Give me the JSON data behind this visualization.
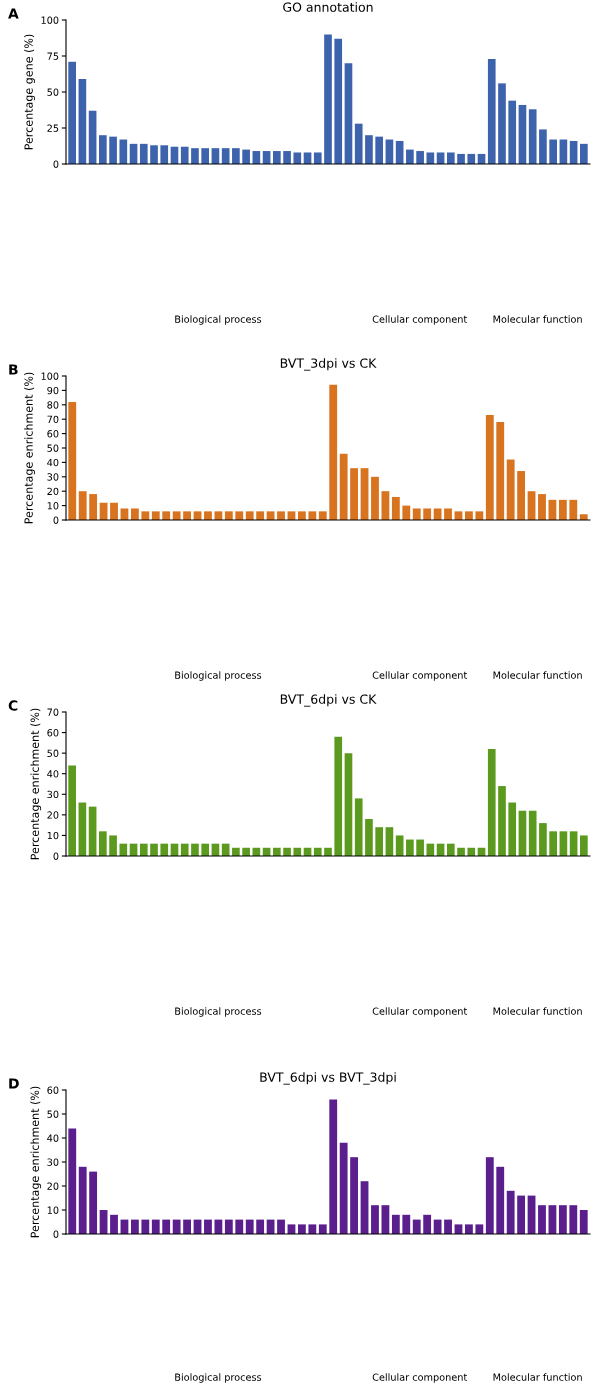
{
  "chart_data": [
    {
      "type": "bar",
      "title": "GO annotation",
      "ylabel": "Percentage gene (%)",
      "annotations": [
        "A",
        "Biological process",
        "Cellular component",
        "Molecular function"
      ],
      "color": "#3d63ad",
      "ylim": [
        0,
        100
      ],
      "yticks": [
        0,
        25,
        50,
        75,
        100
      ],
      "grid": false,
      "categories": [
        null,
        null,
        null,
        null,
        null,
        null,
        null,
        null,
        null,
        null,
        null,
        null,
        null,
        null,
        null,
        null,
        null,
        null,
        null,
        null,
        null,
        null,
        null,
        null,
        null,
        null,
        null,
        null,
        null,
        null,
        null,
        null,
        null,
        null,
        null,
        null,
        null,
        null,
        null,
        null,
        null,
        null,
        null,
        null,
        null,
        null,
        null,
        null,
        null,
        null,
        null
      ],
      "values": [
        71,
        59,
        37,
        20,
        19,
        17,
        14,
        14,
        13,
        13,
        12,
        12,
        11,
        11,
        11,
        11,
        11,
        10,
        9,
        9,
        9,
        9,
        8,
        8,
        8,
        90,
        87,
        70,
        28,
        20,
        19,
        17,
        16,
        10,
        9,
        8,
        8,
        8,
        7,
        7,
        7,
        73,
        56,
        44,
        41,
        38,
        24,
        17,
        17,
        16,
        14
      ]
    },
    {
      "type": "bar",
      "title": "BVT_3dpi vs CK",
      "ylabel": "Percentage enrichment (%)",
      "annotations": [
        "B",
        "Biological process",
        "Cellular component",
        "Molecular function"
      ],
      "color": "#d8731f",
      "ylim": [
        0,
        100
      ],
      "yticks": [
        0,
        10,
        20,
        30,
        40,
        50,
        60,
        70,
        80,
        90,
        100
      ],
      "grid": false,
      "categories": [
        null,
        null,
        null,
        null,
        null,
        null,
        null,
        null,
        null,
        null,
        null,
        null,
        null,
        null,
        null,
        null,
        null,
        null,
        null,
        null,
        null,
        null,
        null,
        null,
        null,
        null,
        null,
        null,
        null,
        null,
        null,
        null,
        null,
        null,
        null,
        null,
        null,
        null,
        null,
        null,
        null,
        null,
        null,
        null,
        null,
        null,
        null,
        null,
        null,
        null
      ],
      "values": [
        82,
        20,
        18,
        12,
        12,
        8,
        8,
        6,
        6,
        6,
        6,
        6,
        6,
        6,
        6,
        6,
        6,
        6,
        6,
        6,
        6,
        6,
        6,
        6,
        6,
        94,
        46,
        36,
        36,
        30,
        20,
        16,
        10,
        8,
        8,
        8,
        8,
        6,
        6,
        6,
        73,
        68,
        42,
        34,
        20,
        18,
        14,
        14,
        14,
        4
      ]
    },
    {
      "type": "bar",
      "title": "BVT_6dpi vs CK",
      "ylabel": "Percentage enrichment (%)",
      "annotations": [
        "C",
        "Biological process",
        "Cellular component",
        "Molecular function"
      ],
      "color": "#5b9a1f",
      "ylim": [
        0,
        70
      ],
      "yticks": [
        0,
        10,
        20,
        30,
        40,
        50,
        60,
        70
      ],
      "grid": false,
      "categories": [
        null,
        null,
        null,
        null,
        null,
        null,
        null,
        null,
        null,
        null,
        null,
        null,
        null,
        null,
        null,
        null,
        null,
        null,
        null,
        null,
        null,
        null,
        null,
        null,
        null,
        null,
        null,
        null,
        null,
        null,
        null,
        null,
        null,
        null,
        null,
        null,
        null,
        null,
        null,
        null,
        null,
        null,
        null,
        null,
        null,
        null,
        null,
        null,
        null,
        null,
        null
      ],
      "values": [
        44,
        26,
        24,
        12,
        10,
        6,
        6,
        6,
        6,
        6,
        6,
        6,
        6,
        6,
        6,
        6,
        4,
        4,
        4,
        4,
        4,
        4,
        4,
        4,
        4,
        4,
        58,
        50,
        28,
        18,
        14,
        14,
        10,
        8,
        8,
        6,
        6,
        6,
        4,
        4,
        4,
        52,
        34,
        26,
        22,
        22,
        16,
        12,
        12,
        12,
        10
      ]
    },
    {
      "type": "bar",
      "title": "BVT_6dpi vs BVT_3dpi",
      "ylabel": "Percentage enrichment (%)",
      "annotations": [
        "D",
        "Biological process",
        "Cellular component",
        "Molecular function"
      ],
      "color": "#5a1f8c",
      "ylim": [
        0,
        60
      ],
      "yticks": [
        0,
        10,
        20,
        30,
        40,
        50,
        60
      ],
      "grid": false,
      "categories": [
        null,
        null,
        null,
        null,
        null,
        null,
        null,
        null,
        null,
        null,
        null,
        null,
        null,
        null,
        null,
        null,
        null,
        null,
        null,
        null,
        null,
        null,
        null,
        null,
        null,
        null,
        null,
        null,
        null,
        null,
        null,
        null,
        null,
        null,
        null,
        null,
        null,
        null,
        null,
        null,
        null,
        null,
        null,
        null,
        null,
        null,
        null,
        null,
        null,
        null
      ],
      "values": [
        44,
        28,
        26,
        10,
        8,
        6,
        6,
        6,
        6,
        6,
        6,
        6,
        6,
        6,
        6,
        6,
        6,
        6,
        6,
        6,
        6,
        4,
        4,
        4,
        4,
        56,
        38,
        32,
        22,
        12,
        12,
        8,
        8,
        6,
        8,
        6,
        6,
        4,
        4,
        4,
        32,
        28,
        18,
        16,
        16,
        12,
        12,
        12,
        12,
        10
      ]
    }
  ]
}
